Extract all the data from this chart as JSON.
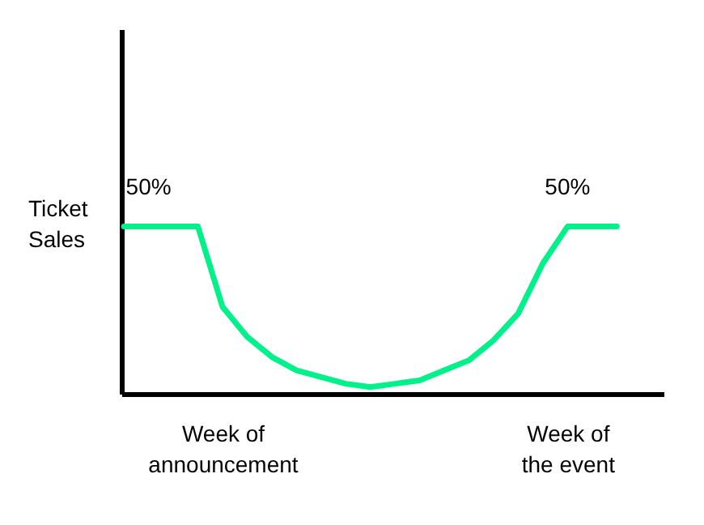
{
  "chart_data": {
    "type": "line",
    "ylabel": "Ticket Sales",
    "categories": [
      null,
      null,
      null,
      null,
      "Week of announcement",
      null,
      null,
      null,
      null,
      null,
      null,
      null,
      null,
      null,
      null,
      null,
      null,
      null,
      "Week of the event",
      null,
      null
    ],
    "series": [
      {
        "color": "#00f08a",
        "values": [
          50,
          50,
          50,
          50,
          26,
          17,
          11,
          7,
          5,
          3,
          2,
          3,
          4,
          7,
          10,
          16,
          24,
          39,
          50,
          50,
          50
        ],
        "value_labels": [
          null,
          "50%",
          null,
          null,
          null,
          null,
          null,
          null,
          null,
          null,
          null,
          null,
          null,
          null,
          null,
          null,
          null,
          null,
          "50%",
          null,
          null
        ]
      }
    ],
    "ylim": [
      0,
      109
    ],
    "tick_labels": "x"
  }
}
